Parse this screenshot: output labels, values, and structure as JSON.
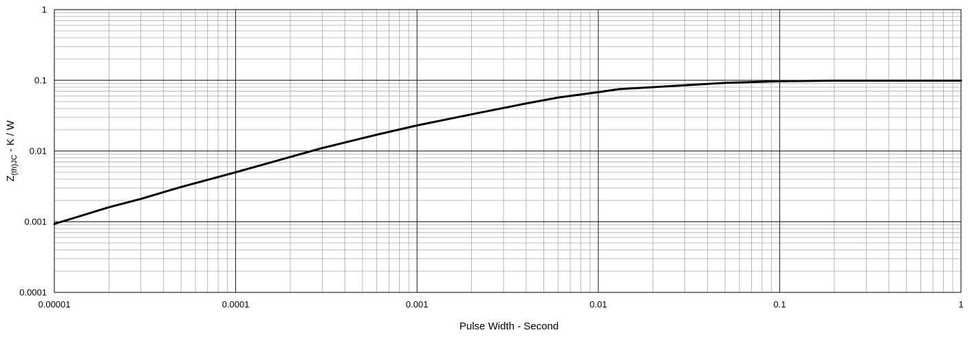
{
  "chart_data": {
    "type": "line",
    "title": "",
    "xlabel": "Pulse Width - Second",
    "ylabel": {
      "main": "Z",
      "subscript": "(th)JC",
      "rest": " - K / W"
    },
    "x_scale": "log",
    "y_scale": "log",
    "xlim": [
      1e-05,
      1
    ],
    "ylim": [
      0.0001,
      1
    ],
    "x_ticks": [
      1e-05,
      0.0001,
      0.001,
      0.01,
      0.1,
      1
    ],
    "x_tick_labels": [
      "0.00001",
      "0.0001",
      "0.001",
      "0.01",
      "0.1",
      "1"
    ],
    "y_ticks": [
      0.0001,
      0.001,
      0.01,
      0.1,
      1
    ],
    "y_tick_labels": [
      "0.0001",
      "0.001",
      "0.01",
      "0.1",
      "1"
    ],
    "grid": true,
    "series": [
      {
        "color": "#000000",
        "x": [
          1e-05,
          2e-05,
          3e-05,
          5e-05,
          0.0001,
          0.0003,
          0.0006,
          0.001,
          0.002,
          0.004,
          0.006,
          0.01,
          0.013,
          0.02,
          0.05,
          0.1,
          0.2,
          0.5,
          1
        ],
        "y": [
          0.00093,
          0.0016,
          0.0021,
          0.0031,
          0.005,
          0.011,
          0.017,
          0.023,
          0.033,
          0.047,
          0.057,
          0.068,
          0.075,
          0.08,
          0.092,
          0.097,
          0.099,
          0.099,
          0.099
        ]
      }
    ]
  }
}
